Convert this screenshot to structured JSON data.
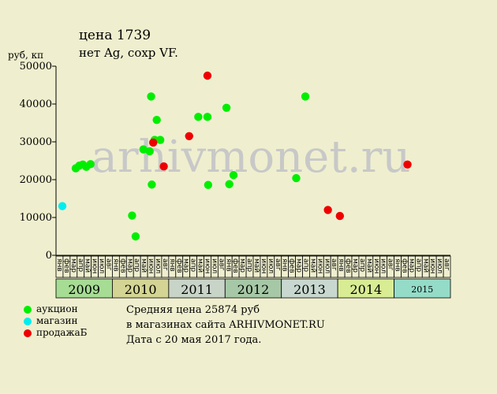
{
  "chart_data": {
    "type": "scatter",
    "title": "цена 1739",
    "subtitle": "нет Ag, сохр VF.",
    "ylabel": "руб, кп",
    "ylim": [
      0,
      50000
    ],
    "yticks": [
      0,
      10000,
      20000,
      30000,
      40000,
      50000
    ],
    "grid": false,
    "watermark": "arhivmonet.ru",
    "x_type": "month-slots",
    "x_slots_per_year": 8,
    "month_labels": [
      "янв",
      "фев",
      "мар",
      "апр",
      "май",
      "июн",
      "июл",
      "авг"
    ],
    "years": [
      {
        "label": "2009",
        "color": "#a6dc94"
      },
      {
        "label": "2010",
        "color": "#d4d494"
      },
      {
        "label": "2011",
        "color": "#c8d4c8"
      },
      {
        "label": "2012",
        "color": "#a6c8a6"
      },
      {
        "label": "2013",
        "color": "#c8d8d0"
      },
      {
        "label": "2014",
        "color": "#d8ec94"
      },
      {
        "label": "2015",
        "color": "#94dcc8"
      }
    ],
    "series": [
      {
        "name": "аукцион",
        "color": "#00ee00",
        "points": [
          {
            "x": 2.8,
            "y": 23000
          },
          {
            "x": 3.3,
            "y": 23700
          },
          {
            "x": 3.8,
            "y": 24000
          },
          {
            "x": 4.3,
            "y": 23400
          },
          {
            "x": 4.9,
            "y": 24100
          },
          {
            "x": 10.8,
            "y": 10500
          },
          {
            "x": 11.3,
            "y": 5000
          },
          {
            "x": 12.4,
            "y": 28000
          },
          {
            "x": 13.3,
            "y": 27500
          },
          {
            "x": 13.5,
            "y": 42000
          },
          {
            "x": 13.6,
            "y": 18700
          },
          {
            "x": 14.0,
            "y": 30500
          },
          {
            "x": 14.3,
            "y": 35800
          },
          {
            "x": 14.8,
            "y": 30500
          },
          {
            "x": 20.2,
            "y": 36600
          },
          {
            "x": 21.5,
            "y": 36600
          },
          {
            "x": 21.6,
            "y": 18600
          },
          {
            "x": 24.2,
            "y": 39000
          },
          {
            "x": 24.6,
            "y": 18800
          },
          {
            "x": 25.2,
            "y": 21200
          },
          {
            "x": 34.1,
            "y": 20400
          },
          {
            "x": 35.4,
            "y": 42000
          }
        ]
      },
      {
        "name": "магазин",
        "color": "#00eeee",
        "points": [
          {
            "x": 0.9,
            "y": 13000
          }
        ]
      },
      {
        "name": "продажаБ",
        "color": "#ee0000",
        "points": [
          {
            "x": 13.8,
            "y": 29800
          },
          {
            "x": 15.3,
            "y": 23500
          },
          {
            "x": 18.9,
            "y": 31500
          },
          {
            "x": 21.5,
            "y": 47500
          },
          {
            "x": 38.6,
            "y": 12000
          },
          {
            "x": 40.3,
            "y": 10400
          },
          {
            "x": 49.9,
            "y": 24000
          }
        ]
      }
    ]
  },
  "notes": {
    "line1": "Средняя цена 25874 руб",
    "line2": "в магазинах сайта ARHIVMONET.RU",
    "line3": "Дата с 20 мая 2017 года."
  }
}
